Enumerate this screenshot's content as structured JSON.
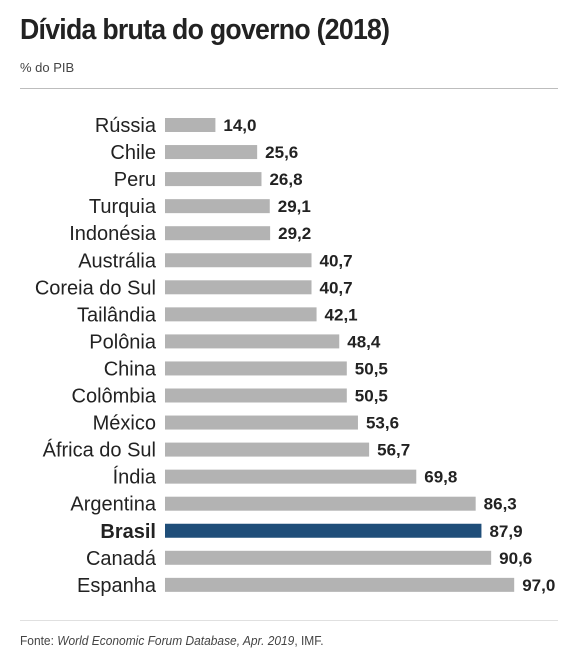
{
  "chart_data": {
    "type": "bar",
    "orientation": "horizontal",
    "title": "Dívida bruta do governo (2018)",
    "subtitle": "% do PIB",
    "categories": [
      "Rússia",
      "Chile",
      "Peru",
      "Turquia",
      "Indonésia",
      "Austrália",
      "Coreia do Sul",
      "Tailândia",
      "Polônia",
      "China",
      "Colômbia",
      "México",
      "África do Sul",
      "Índia",
      "Argentina",
      "Brasil",
      "Canadá",
      "Espanha"
    ],
    "values": [
      14.0,
      25.6,
      26.8,
      29.1,
      29.2,
      40.7,
      40.7,
      42.1,
      48.4,
      50.5,
      50.5,
      53.6,
      56.7,
      69.8,
      86.3,
      87.9,
      90.6,
      97.0
    ],
    "value_labels": [
      "14,0",
      "25,6",
      "26,8",
      "29,1",
      "29,2",
      "40,7",
      "40,7",
      "42,1",
      "48,4",
      "50,5",
      "50,5",
      "53,6",
      "56,7",
      "69,8",
      "86,3",
      "87,9",
      "90,6",
      "97,0"
    ],
    "highlight": "Brasil",
    "colors": {
      "bar": "#b3b3b3",
      "highlight": "#1f4e79",
      "text": "#222222"
    },
    "xlim": [
      0,
      100
    ],
    "grid": false
  },
  "source": {
    "prefix": "Fonte: ",
    "italic": "World Economic Forum Database, Apr. 2019",
    "suffix": ", IMF."
  }
}
